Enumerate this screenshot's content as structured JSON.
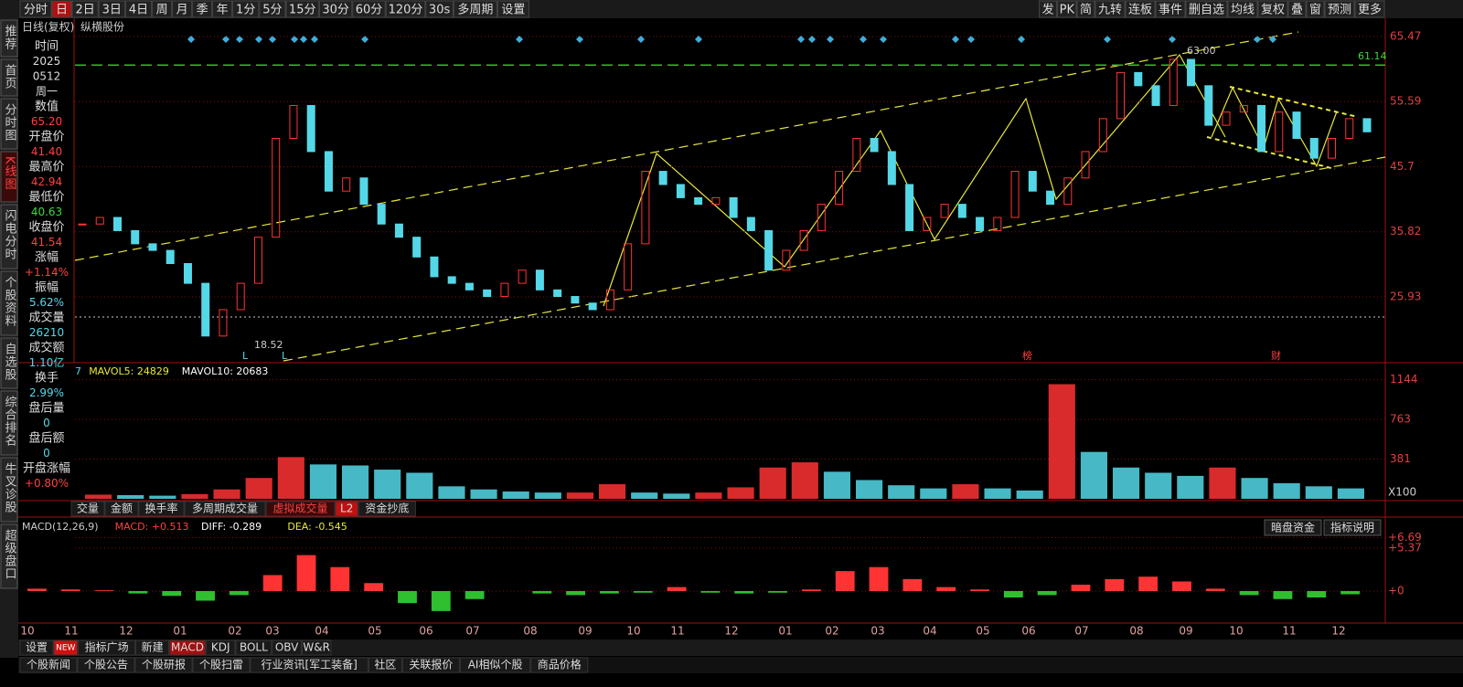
{
  "toolbar": {
    "left": [
      "分时",
      "日",
      "2日",
      "3日",
      "4日",
      "周",
      "月",
      "季",
      "年",
      "1分",
      "5分",
      "15分",
      "30分",
      "60分",
      "120分",
      "30s",
      "多周期",
      "设置"
    ],
    "right": [
      "发",
      "PK",
      "简",
      "九转",
      "连板",
      "事件",
      "删自选",
      "均线",
      "复权",
      "叠",
      "窗",
      "预测",
      "更多"
    ]
  },
  "title": {
    "period": "日线(复权)",
    "stock": "纵横股份"
  },
  "sidebar": [
    "推荐",
    "首页",
    "分时图",
    "K线图",
    "闪电分时",
    "个股资料",
    "自选股",
    "综合排名",
    "牛叉诊股",
    "超级盘口"
  ],
  "info": {
    "time_label": "时间",
    "time": [
      "2025",
      "0512",
      "周一"
    ],
    "rows": [
      {
        "label": "数值",
        "value": "65.20"
      },
      {
        "label": "开盘价",
        "value": "41.40"
      },
      {
        "label": "最高价",
        "value": "42.94"
      },
      {
        "label": "最低价",
        "value": "40.63"
      },
      {
        "label": "收盘价",
        "value": "41.54"
      },
      {
        "label": "涨幅",
        "value": "+1.14%"
      },
      {
        "label": "振幅",
        "value": "5.62%"
      },
      {
        "label": "成交量",
        "value": "26210"
      },
      {
        "label": "成交额",
        "value": "1.10亿"
      },
      {
        "label": "换手",
        "value": "2.99%"
      },
      {
        "label": "盘后量",
        "value": "0"
      },
      {
        "label": "盘后额",
        "value": "0"
      },
      {
        "label": "开盘涨幅",
        "value": "+0.80%"
      }
    ]
  },
  "price_panel": {
    "ylim": [
      15.95,
      68.24
    ],
    "yticks": [
      65.47,
      55.59,
      45.7,
      35.82,
      25.93
    ],
    "up_color": "#ff3333",
    "down_color": "#54d8e8",
    "close": [
      37,
      38,
      36,
      34,
      33,
      31,
      28,
      20,
      24,
      28,
      35,
      50,
      55,
      48,
      42,
      44,
      40,
      37,
      35,
      32,
      29,
      28,
      27,
      26,
      28,
      30,
      27,
      26,
      25,
      24,
      27,
      34,
      45,
      43,
      41,
      40,
      41,
      38,
      36,
      30,
      33,
      36,
      40,
      45,
      50,
      48,
      43,
      36,
      38,
      40,
      38,
      36,
      38,
      45,
      42,
      40,
      44,
      48,
      53,
      60,
      58,
      55,
      62,
      58,
      52,
      54,
      55,
      48,
      54,
      50,
      47,
      50,
      53,
      51
    ],
    "resistance": 61.14,
    "resistance_label": "61.14",
    "high_label": "63.00",
    "low_label": "18.52",
    "markers": [
      "L",
      "L",
      "榜",
      "财"
    ]
  },
  "volume_panel": {
    "header": [
      "7",
      "MAVOL5: 24829",
      "MAVOL10: 20683"
    ],
    "ylim": [
      0,
      1280
    ],
    "yticks": [
      1144,
      763,
      381
    ],
    "unit": "X100",
    "values": [
      40,
      35,
      30,
      45,
      90,
      200,
      400,
      330,
      320,
      280,
      250,
      120,
      90,
      70,
      60,
      60,
      140,
      60,
      50,
      60,
      110,
      300,
      350,
      260,
      180,
      130,
      100,
      140,
      100,
      80,
      1100,
      450,
      300,
      250,
      220,
      300,
      200,
      150,
      120,
      100
    ],
    "tabs": [
      "交量",
      "金额",
      "换手率",
      "多周期成交量",
      "虚拟成交量",
      "L2",
      "资金抄底"
    ]
  },
  "macd_panel": {
    "header": [
      "MACD(12,26,9)",
      "MACD: +0.513",
      "DIFF: -0.289",
      "DEA: -0.545"
    ],
    "buttons": [
      "暗盘资金",
      "指标说明"
    ],
    "ylim": [
      -4.0,
      8.8
    ],
    "yticks": [
      {
        "value": 6.69,
        "label": "+6.69"
      },
      {
        "value": 5.37,
        "label": "+5.37"
      },
      {
        "value": 0,
        "label": "+0"
      }
    ],
    "values": [
      0.3,
      0.2,
      0.1,
      -0.3,
      -0.6,
      -1.2,
      -0.5,
      2,
      4.5,
      3,
      1,
      -1.5,
      -2.5,
      -1,
      0,
      -0.3,
      -0.5,
      -0.3,
      -0.2,
      0.5,
      -0.2,
      -0.3,
      -0.2,
      0.2,
      2.5,
      3,
      1.5,
      0.5,
      0.2,
      -0.8,
      -0.5,
      0.8,
      1.5,
      1.8,
      1.2,
      0.3,
      -0.5,
      -1,
      -0.8,
      -0.4
    ]
  },
  "months": [
    "10",
    "11",
    "12",
    "01",
    "02",
    "03",
    "04",
    "05",
    "06",
    "07",
    "08",
    "09",
    "10",
    "11",
    "12",
    "01",
    "02",
    "03",
    "04",
    "05",
    "06",
    "07",
    "08",
    "09",
    "10",
    "11",
    "12"
  ],
  "indicator_tabs": [
    "设置",
    "NEW",
    "指标广场",
    "新建",
    "MACD",
    "KDJ",
    "BOLL",
    "OBV",
    "W&R"
  ],
  "news_tabs": [
    "个股新闻",
    "个股公告",
    "个股研报",
    "个股扫雷",
    "行业资讯[军工装备]",
    "社区",
    "关联报价",
    "AI相似个股",
    "商品价格"
  ]
}
